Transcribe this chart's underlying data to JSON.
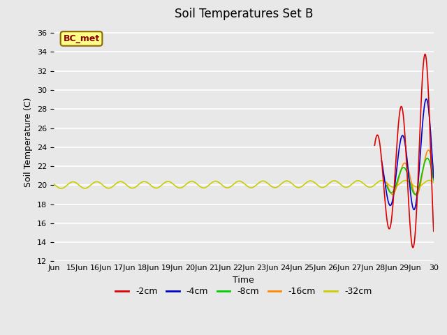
{
  "title": "Soil Temperatures Set B",
  "xlabel": "Time",
  "ylabel": "Soil Temperature (C)",
  "ylim": [
    12,
    37
  ],
  "yticks": [
    12,
    14,
    16,
    18,
    20,
    22,
    24,
    26,
    28,
    30,
    32,
    34,
    36
  ],
  "x_start_day": 14,
  "x_end_day": 30,
  "xtick_days": [
    14,
    15,
    16,
    17,
    18,
    19,
    20,
    21,
    22,
    23,
    24,
    25,
    26,
    27,
    28,
    29,
    30
  ],
  "xtick_labels": [
    "Jun",
    "15Jun",
    "16Jun",
    "17Jun",
    "18Jun",
    "19Jun",
    "20Jun",
    "21Jun",
    "22Jun",
    "23Jun",
    "24Jun",
    "25Jun",
    "26Jun",
    "27Jun",
    "28Jun",
    "29Jun",
    "30"
  ],
  "series_colors": [
    "#dd0000",
    "#0000cc",
    "#00cc00",
    "#ff8800",
    "#cccc00"
  ],
  "series_labels": [
    "-2cm",
    "-4cm",
    "-8cm",
    "-16cm",
    "-32cm"
  ],
  "legend_label": "BC_met",
  "legend_box_color": "#ffff88",
  "legend_box_edge": "#886600",
  "plot_bg_color": "#e8e8e8",
  "grid_color": "#ffffff",
  "title_fontsize": 12,
  "axis_fontsize": 9,
  "tick_fontsize": 8
}
